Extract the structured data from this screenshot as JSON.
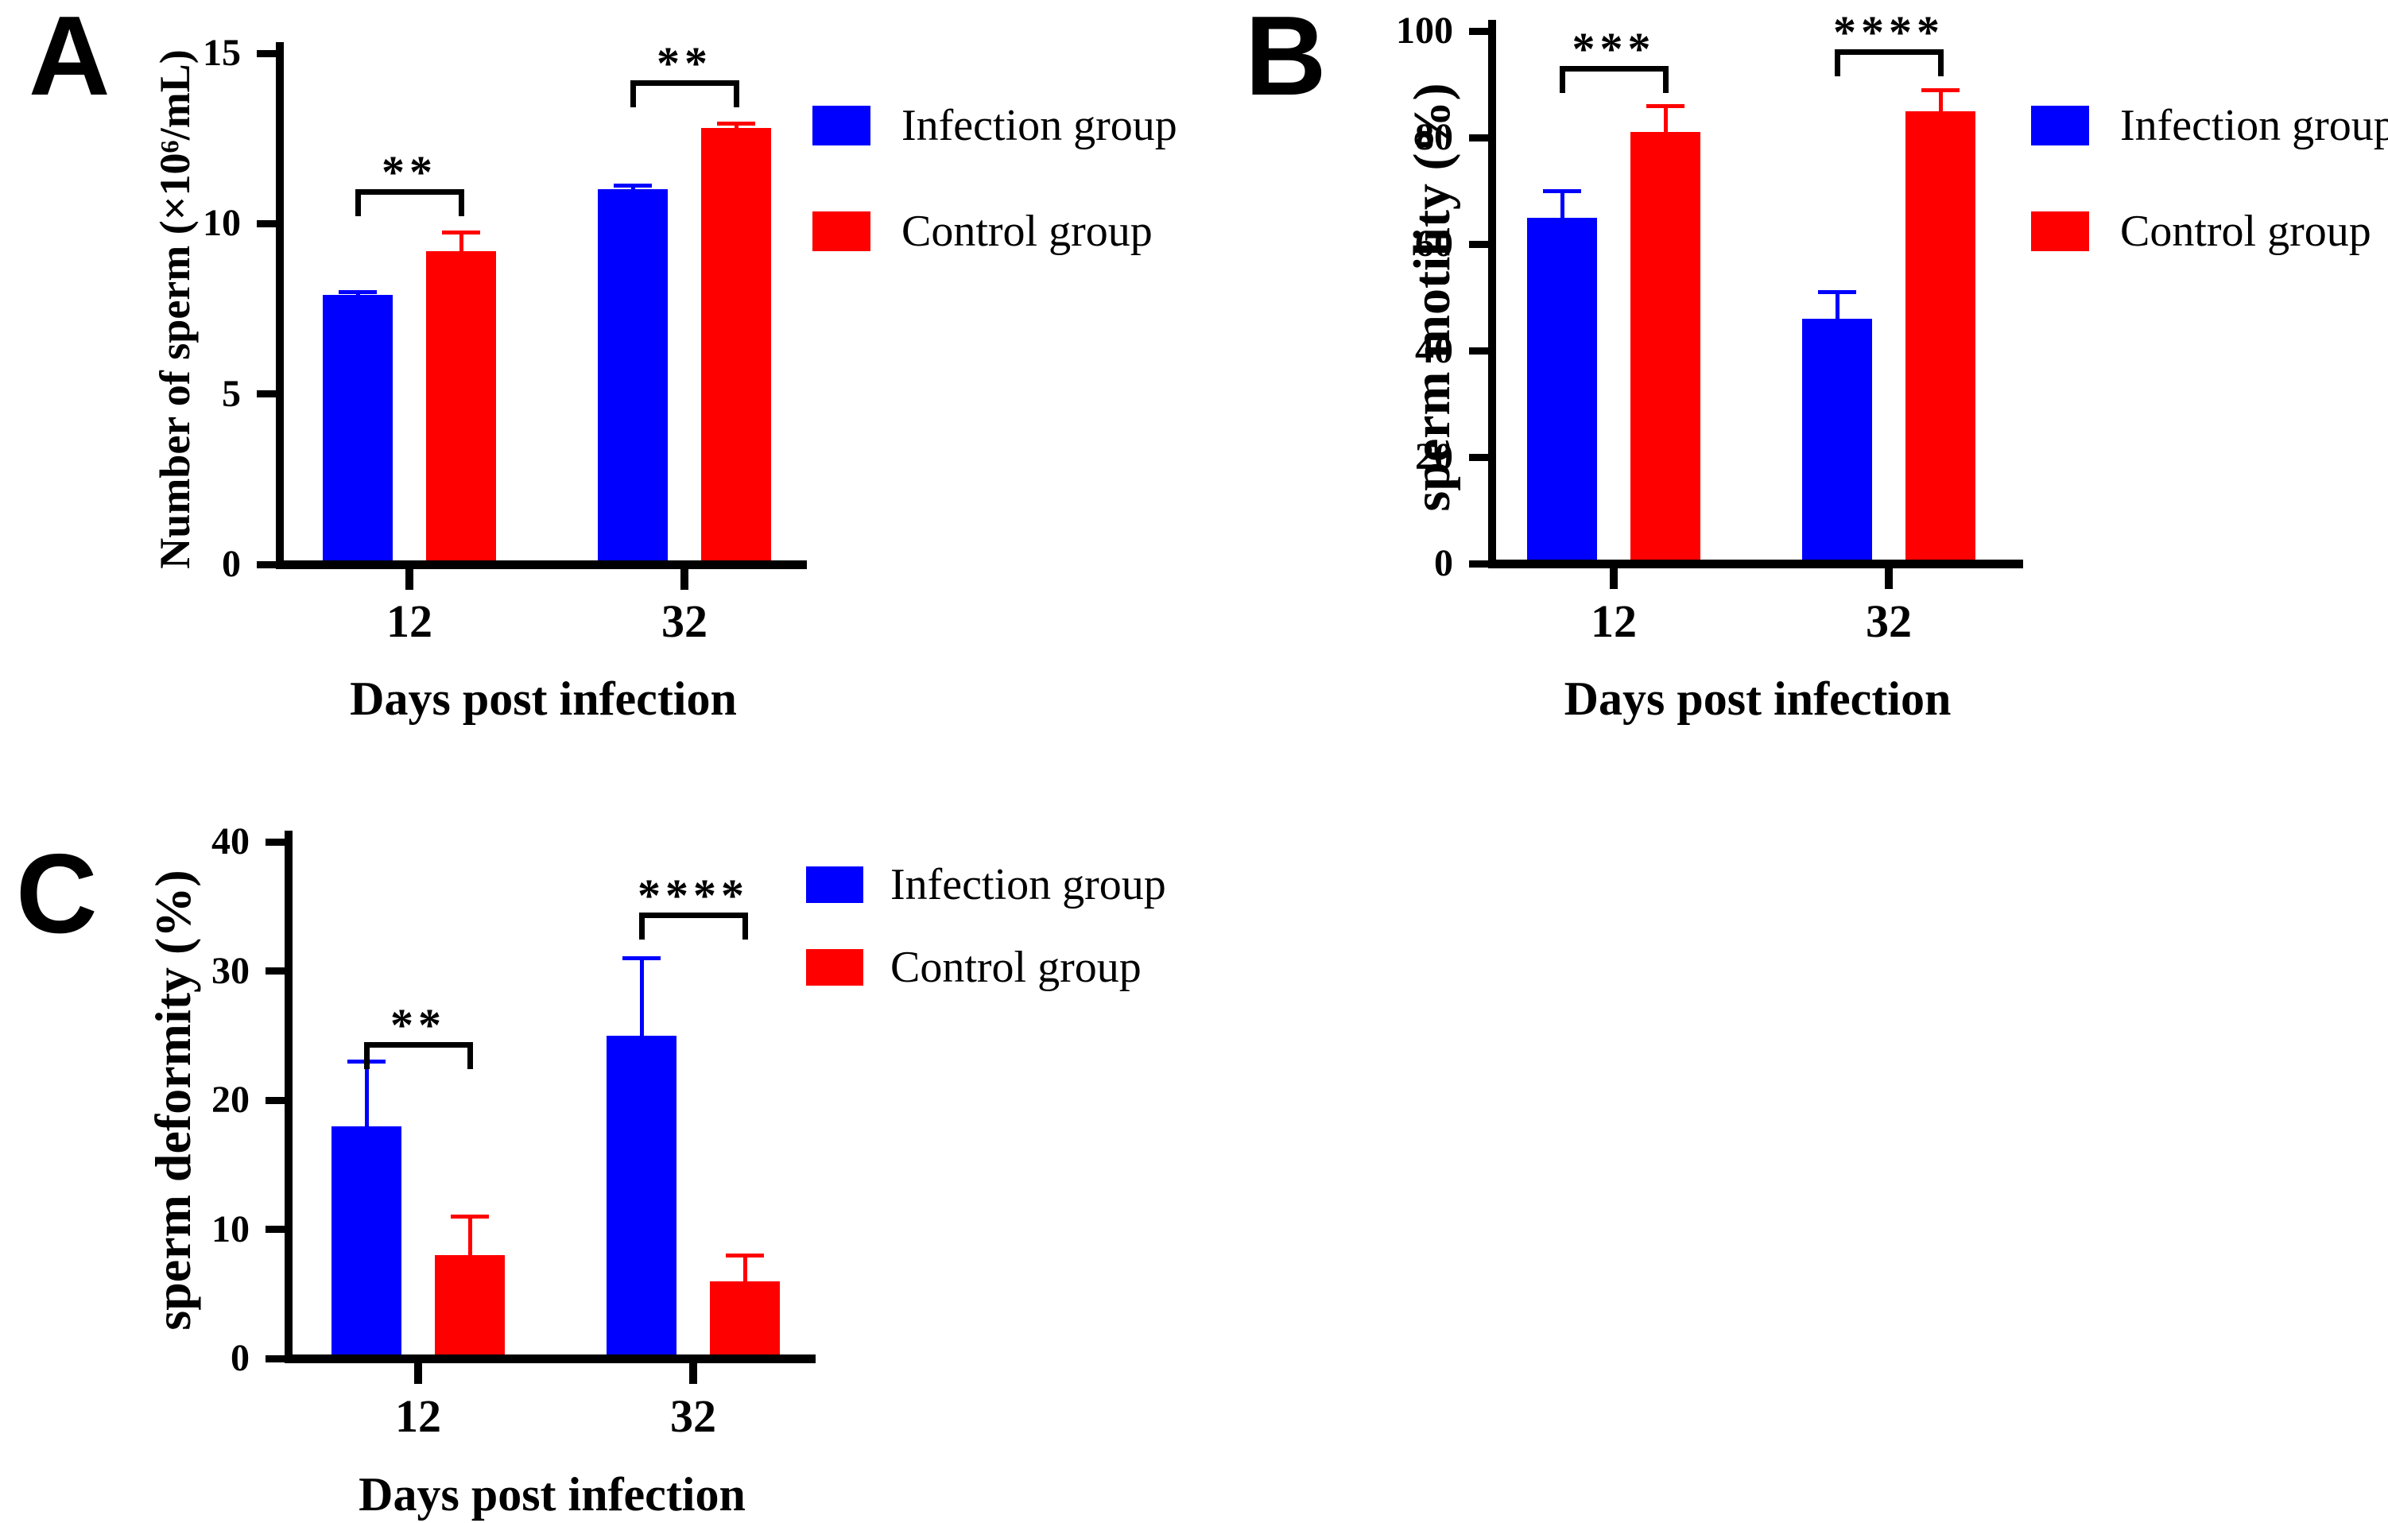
{
  "figure": {
    "background": "#ffffff",
    "infection_color": "#0000fe",
    "control_color": "#fe0000"
  },
  "chart_data": [
    {
      "panel_label": "A",
      "type": "bar",
      "title": "",
      "ylabel": "Number of sperm (×10⁶/mL)",
      "xlabel": "Days post infection",
      "categories": [
        "12",
        "32"
      ],
      "ylim": [
        0,
        15
      ],
      "yticks": [
        0,
        5,
        10,
        15
      ],
      "grid": false,
      "legend_position": "right",
      "series": [
        {
          "name": "Infection group",
          "color": "#0000fe",
          "values": [
            7.9,
            11.0
          ],
          "errors_plus": [
            0.1,
            0.12
          ]
        },
        {
          "name": "Control group",
          "color": "#fe0000",
          "values": [
            9.2,
            12.8
          ],
          "errors_plus": [
            0.55,
            0.15
          ]
        }
      ],
      "significance": [
        {
          "pair": "12",
          "label": "**",
          "bracket_y": 11.0
        },
        {
          "pair": "32",
          "label": "**",
          "bracket_y": 14.2
        }
      ]
    },
    {
      "panel_label": "B",
      "type": "bar",
      "title": "",
      "ylabel": "sperm motility (%)",
      "xlabel": "Days post infection",
      "categories": [
        "12",
        "32"
      ],
      "ylim": [
        0,
        100
      ],
      "yticks": [
        0,
        20,
        40,
        60,
        80,
        100
      ],
      "grid": false,
      "legend_position": "right",
      "series": [
        {
          "name": "Infection group",
          "color": "#0000fe",
          "values": [
            65,
            46
          ],
          "errors_plus": [
            5,
            5
          ]
        },
        {
          "name": "Control group",
          "color": "#fe0000",
          "values": [
            81,
            85
          ],
          "errors_plus": [
            5,
            4
          ]
        }
      ],
      "significance": [
        {
          "pair": "12",
          "label": "***",
          "bracket_y": 93.5
        },
        {
          "pair": "32",
          "label": "****",
          "bracket_y": 96.5
        }
      ]
    },
    {
      "panel_label": "C",
      "type": "bar",
      "title": "",
      "ylabel": "sperm deformity (%)",
      "xlabel": "Days post infection",
      "categories": [
        "12",
        "32"
      ],
      "ylim": [
        0,
        40
      ],
      "yticks": [
        0,
        10,
        20,
        30,
        40
      ],
      "grid": false,
      "legend_position": "right",
      "series": [
        {
          "name": "Infection group",
          "color": "#0000fe",
          "values": [
            18,
            25
          ],
          "errors_plus": [
            5,
            6
          ]
        },
        {
          "name": "Control group",
          "color": "#fe0000",
          "values": [
            8,
            6
          ],
          "errors_plus": [
            3,
            2
          ]
        }
      ],
      "significance": [
        {
          "pair": "12",
          "label": "**",
          "bracket_y": 24.5
        },
        {
          "pair": "32",
          "label": "****",
          "bracket_y": 34.5
        }
      ]
    }
  ]
}
